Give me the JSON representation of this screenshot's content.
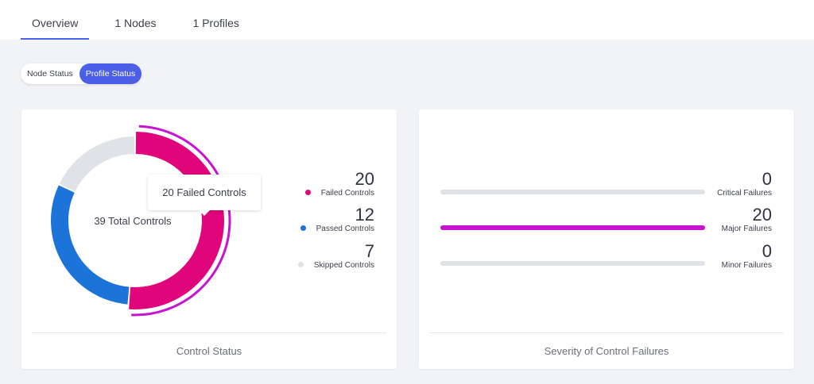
{
  "tabs": [
    {
      "label": "Overview",
      "active": true
    },
    {
      "label": "1 Nodes"
    },
    {
      "label": "1 Profiles"
    }
  ],
  "toggle": {
    "options": [
      "Node Status",
      "Profile Status"
    ],
    "selected": "Profile Status"
  },
  "control_status": {
    "title": "Control Status",
    "center_label": "39 Total Controls",
    "tooltip": "20 Failed Controls",
    "items": [
      {
        "value": "20",
        "label": "Failed Controls",
        "color": "#e0057a",
        "count": 20
      },
      {
        "value": "12",
        "label": "Passed Controls",
        "color": "#1d74d8",
        "count": 12
      },
      {
        "value": "7",
        "label": "Skipped Controls",
        "color": "#dfe2e6",
        "count": 7
      }
    ],
    "highlight_color": "#c614d1"
  },
  "severity": {
    "title": "Severity of Control Failures",
    "items": [
      {
        "value": "0",
        "label": "Critical Failures",
        "fraction": 0
      },
      {
        "value": "20",
        "label": "Major Failures",
        "fraction": 1
      },
      {
        "value": "0",
        "label": "Minor Failures",
        "fraction": 0
      }
    ]
  }
}
